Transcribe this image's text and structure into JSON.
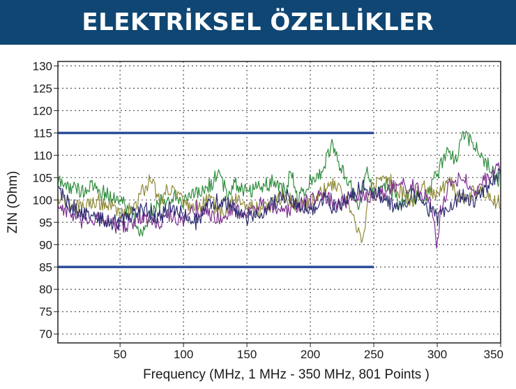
{
  "banner": {
    "title": "ELEKTRİKSEL ÖZELLİKLER"
  },
  "colors": {
    "banner_bg": "#0f4673",
    "limit_line": "#2e4e9a"
  },
  "chart_data": {
    "type": "line",
    "xlabel": "Frequency (MHz, 1 MHz - 350 MHz, 801 Points )",
    "ylabel": "ZIN (Ohm)",
    "xlim": [
      1,
      350
    ],
    "ylim": [
      68,
      131
    ],
    "xticks": [
      50,
      100,
      150,
      200,
      250,
      300,
      350
    ],
    "yticks": [
      70,
      75,
      80,
      85,
      90,
      95,
      100,
      105,
      110,
      115,
      120,
      125,
      130
    ],
    "grid": true,
    "limit_lines": [
      {
        "y": 115,
        "x": [
          1,
          250
        ],
        "color": "#2e4e9a"
      },
      {
        "y": 85,
        "x": [
          1,
          250
        ],
        "color": "#2e4e9a"
      }
    ],
    "series": [
      {
        "color": "#2f8c3c",
        "x": [
          1,
          10,
          20,
          30,
          40,
          50,
          60,
          66,
          75,
          90,
          100,
          110,
          120,
          128,
          135,
          140,
          150,
          160,
          170,
          180,
          185,
          190,
          200,
          210,
          217,
          222,
          230,
          238,
          245,
          250,
          260,
          270,
          280,
          290,
          300,
          308,
          315,
          320,
          330,
          340,
          350
        ],
        "values": [
          104,
          103,
          102,
          103,
          101,
          100,
          97,
          92,
          98,
          101,
          100,
          101,
          103,
          106,
          101,
          104,
          102,
          103,
          104,
          102,
          106,
          100,
          104,
          107,
          113,
          108,
          104,
          99,
          106,
          101,
          104,
          99,
          101,
          100,
          106,
          111,
          109,
          115,
          112,
          108,
          104
        ]
      },
      {
        "color": "#8f8a3a",
        "x": [
          1,
          10,
          20,
          30,
          40,
          50,
          60,
          70,
          75,
          80,
          90,
          100,
          110,
          120,
          130,
          140,
          150,
          160,
          170,
          180,
          190,
          200,
          210,
          220,
          228,
          235,
          238,
          242,
          245,
          250,
          260,
          270,
          280,
          290,
          300,
          310,
          320,
          330,
          340,
          350
        ],
        "values": [
          101,
          99,
          98,
          100,
          99,
          97,
          98,
          103,
          105,
          100,
          103,
          99,
          98,
          100,
          97,
          100,
          99,
          98,
          99,
          101,
          98,
          100,
          102,
          104,
          100,
          96,
          93,
          91,
          101,
          103,
          105,
          102,
          100,
          103,
          101,
          104,
          100,
          102,
          101,
          99
        ]
      },
      {
        "color": "#7b2e8e",
        "x": [
          1,
          10,
          20,
          30,
          40,
          50,
          60,
          70,
          80,
          90,
          100,
          110,
          120,
          130,
          140,
          150,
          160,
          170,
          180,
          190,
          200,
          210,
          220,
          230,
          240,
          250,
          260,
          270,
          280,
          290,
          295,
          300,
          302,
          305,
          310,
          320,
          330,
          340,
          350
        ],
        "values": [
          99,
          97,
          95,
          96,
          95,
          94,
          95,
          96,
          95,
          97,
          95,
          98,
          97,
          96,
          98,
          97,
          99,
          98,
          97,
          99,
          100,
          101,
          99,
          100,
          101,
          100,
          102,
          104,
          103,
          101,
          99,
          89,
          97,
          100,
          103,
          106,
          102,
          105,
          107
        ]
      },
      {
        "color": "#2a2a6e",
        "x": [
          1,
          10,
          20,
          30,
          40,
          50,
          60,
          70,
          80,
          90,
          100,
          110,
          120,
          130,
          140,
          150,
          160,
          170,
          180,
          190,
          200,
          210,
          220,
          230,
          240,
          250,
          260,
          270,
          280,
          290,
          300,
          310,
          320,
          330,
          340,
          350
        ],
        "values": [
          103,
          99,
          97,
          96,
          95,
          95,
          97,
          98,
          96,
          98,
          97,
          95,
          99,
          100,
          98,
          96,
          97,
          99,
          101,
          99,
          98,
          100,
          98,
          101,
          103,
          102,
          100,
          98,
          101,
          99,
          96,
          99,
          101,
          100,
          103,
          106
        ]
      }
    ]
  }
}
